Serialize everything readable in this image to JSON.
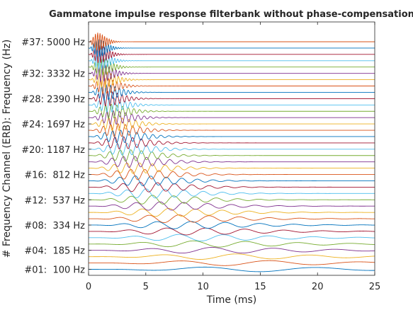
{
  "chart_data": {
    "type": "line",
    "title": "Gammatone impulse response filterbank without phase-compensation",
    "xlabel": "Time (ms)",
    "ylabel": "# Frequency Channel (ERB): Frequency (Hz)",
    "xlim": [
      0,
      25
    ],
    "xticks": [
      "0",
      "5",
      "10",
      "15",
      "20",
      "25"
    ],
    "yticks": [
      {
        "label": "#01:  100 Hz",
        "channel": 1
      },
      {
        "label": "#04:  185 Hz",
        "channel": 4
      },
      {
        "label": "#08:  334 Hz",
        "channel": 8
      },
      {
        "label": "#12:  537 Hz",
        "channel": 12
      },
      {
        "label": "#16:  812 Hz",
        "channel": 16
      },
      {
        "label": "#20: 1187 Hz",
        "channel": 20
      },
      {
        "label": "#24: 1697 Hz",
        "channel": 24
      },
      {
        "label": "#28: 2390 Hz",
        "channel": 28
      },
      {
        "label": "#32: 3332 Hz",
        "channel": 32
      },
      {
        "label": "#37: 5000 Hz",
        "channel": 37
      }
    ],
    "channels": 37,
    "fmin_hz": 100,
    "fmax_hz": 5000,
    "grid": false,
    "series_colors": [
      "#0072BD",
      "#D95319",
      "#EDB120",
      "#7E2F8E",
      "#77AC30",
      "#4DBEEE",
      "#A2142F"
    ]
  }
}
